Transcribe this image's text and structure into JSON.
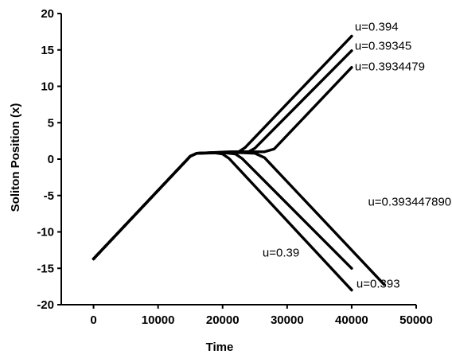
{
  "chart_data": {
    "type": "line",
    "title": "",
    "xlabel": "Time",
    "ylabel": "Soliton Position (x)",
    "xlim": [
      -5000,
      50000
    ],
    "ylim": [
      -20,
      20
    ],
    "xticks": [
      0,
      10000,
      20000,
      30000,
      40000,
      50000
    ],
    "yticks": [
      20,
      15,
      10,
      5,
      0,
      -5,
      -10,
      -15,
      -20
    ],
    "grid": false,
    "line_color": "#000000",
    "series": [
      {
        "name": "u=0.394",
        "x": [
          0,
          15000,
          16000,
          21000,
          22500,
          23500,
          40000
        ],
        "y": [
          -13.7,
          0.4,
          0.8,
          1.0,
          1.0,
          1.6,
          16.9
        ]
      },
      {
        "name": "u=0.39345",
        "x": [
          0,
          15000,
          16000,
          22000,
          24000,
          25000,
          40000
        ],
        "y": [
          -13.7,
          0.4,
          0.8,
          1.0,
          1.0,
          1.5,
          14.9
        ]
      },
      {
        "name": "u=0.3934479",
        "x": [
          0,
          15000,
          16000,
          23000,
          26500,
          28000,
          40000
        ],
        "y": [
          -13.7,
          0.4,
          0.8,
          1.0,
          1.0,
          1.4,
          12.6
        ]
      },
      {
        "name": "u=0.3934478905",
        "x": [
          0,
          15000,
          16000,
          22500,
          25000,
          26500,
          45000
        ],
        "y": [
          -13.7,
          0.4,
          0.8,
          0.9,
          0.8,
          0.2,
          -17.2
        ]
      },
      {
        "name": "u=0.393",
        "x": [
          0,
          15000,
          16000,
          20000,
          22000,
          23000,
          40000
        ],
        "y": [
          -13.7,
          0.4,
          0.8,
          0.9,
          0.7,
          0.1,
          -15.0
        ]
      },
      {
        "name": "u=0.39",
        "x": [
          0,
          15000,
          16000,
          18500,
          20000,
          21000,
          40000
        ],
        "y": [
          -13.7,
          0.4,
          0.8,
          0.9,
          0.7,
          0.1,
          -18.0
        ]
      }
    ]
  }
}
